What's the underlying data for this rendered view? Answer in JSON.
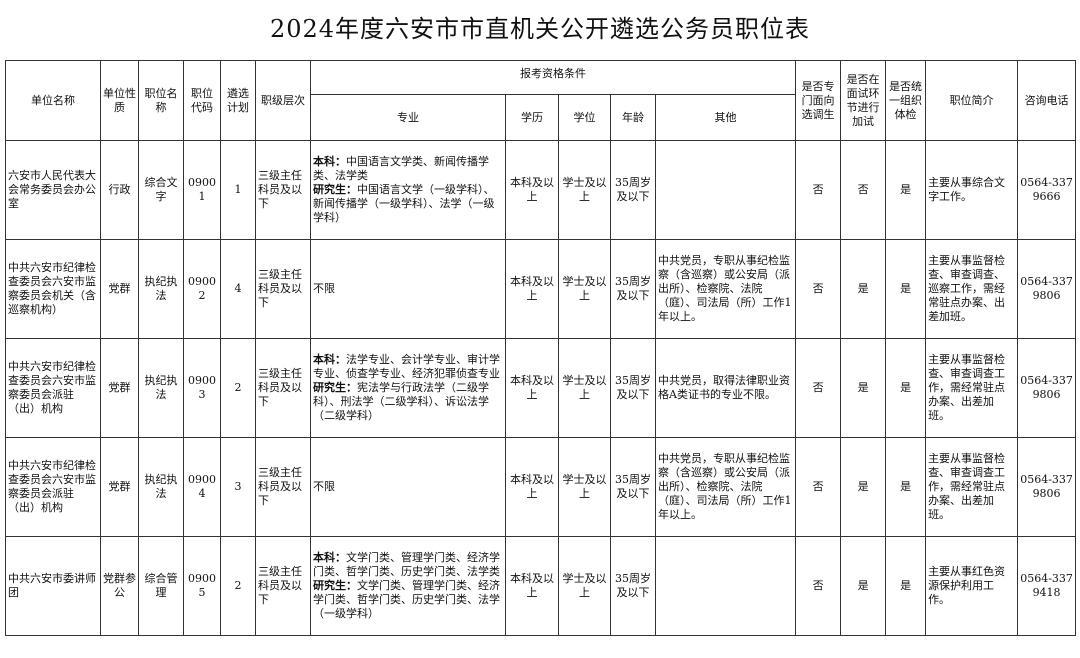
{
  "title": "2024年度六安市市直机关公开遴选公务员职位表",
  "headers": {
    "unit_name": "单位名称",
    "unit_type": "单位性质",
    "position_name": "职位名称",
    "position_code": "职位代码",
    "plan": "遴选计划",
    "level": "职级层次",
    "qualifications": "报考资格条件",
    "major": "专业",
    "education": "学历",
    "degree": "学位",
    "age": "年龄",
    "other": "其他",
    "targeted": "是否专门面向选调生",
    "extra_test": "是否在面试环节进行加试",
    "physical": "是否统一组织体检",
    "intro": "职位简介",
    "phone": "咨询电话"
  },
  "rows": [
    {
      "unit_name": "六安市人民代表大会常务委员会办公室",
      "unit_type": "行政",
      "position_name": "综合文字",
      "position_code": "09001",
      "plan": "1",
      "level": "三级主任科员及以下",
      "major_ug_label": "本科：",
      "major_ug": "中国语言文学类、新闻传播学类、法学类",
      "major_pg_label": "研究生：",
      "major_pg": "中国语言文学（一级学科）、新闻传播学（一级学科）、法学（一级学科）",
      "major_plain": "",
      "education": "本科及以上",
      "degree": "学士及以上",
      "age": "35周岁及以下",
      "other": "",
      "targeted": "否",
      "extra_test": "否",
      "physical": "是",
      "intro": "主要从事综合文字工作。",
      "phone": "0564-3379666"
    },
    {
      "unit_name": "中共六安市纪律检查委员会六安市监察委员会机关（含巡察机构）",
      "unit_type": "党群",
      "position_name": "执纪执法",
      "position_code": "09002",
      "plan": "4",
      "level": "三级主任科员及以下",
      "major_ug_label": "",
      "major_ug": "",
      "major_pg_label": "",
      "major_pg": "",
      "major_plain": "不限",
      "education": "本科及以上",
      "degree": "学士及以上",
      "age": "35周岁及以下",
      "other": "中共党员，专职从事纪检监察（含巡察）或公安局（派出所）、检察院、法院（庭）、司法局（所）工作1年以上。",
      "targeted": "否",
      "extra_test": "是",
      "physical": "是",
      "intro": "主要从事监督检查、审查调查、巡察工作，需经常驻点办案、出差加班。",
      "phone": "0564-3379806"
    },
    {
      "unit_name": "中共六安市纪律检查委员会六安市监察委员会派驻（出）机构",
      "unit_type": "党群",
      "position_name": "执纪执法",
      "position_code": "09003",
      "plan": "2",
      "level": "三级主任科员及以下",
      "major_ug_label": "本科：",
      "major_ug": "法学专业、会计学专业、审计学专业、侦查学专业、经济犯罪侦查专业",
      "major_pg_label": "研究生：",
      "major_pg": "宪法学与行政法学（二级学科）、刑法学（二级学科）、诉讼法学（二级学科）",
      "major_plain": "",
      "education": "本科及以上",
      "degree": "学士及以上",
      "age": "35周岁及以下",
      "other": "中共党员，取得法律职业资格A类证书的专业不限。",
      "targeted": "否",
      "extra_test": "是",
      "physical": "是",
      "intro": "主要从事监督检查、审查调查工作，需经常驻点办案、出差加班。",
      "phone": "0564-3379806"
    },
    {
      "unit_name": "中共六安市纪律检查委员会六安市监察委员会派驻（出）机构",
      "unit_type": "党群",
      "position_name": "执纪执法",
      "position_code": "09004",
      "plan": "3",
      "level": "三级主任科员及以下",
      "major_ug_label": "",
      "major_ug": "",
      "major_pg_label": "",
      "major_pg": "",
      "major_plain": "不限",
      "education": "本科及以上",
      "degree": "学士及以上",
      "age": "35周岁及以下",
      "other": "中共党员，专职从事纪检监察（含巡察）或公安局（派出所）、检察院、法院（庭）、司法局（所）工作1年以上。",
      "targeted": "否",
      "extra_test": "是",
      "physical": "是",
      "intro": "主要从事监督检查、审查调查工作，需经常驻点办案、出差加班。",
      "phone": "0564-3379806"
    },
    {
      "unit_name": "中共六安市委讲师团",
      "unit_type": "党群参公",
      "position_name": "综合管理",
      "position_code": "09005",
      "plan": "2",
      "level": "三级主任科员及以下",
      "major_ug_label": "本科：",
      "major_ug": "文学门类、管理学门类、经济学门类、哲学门类、历史学门类、法学类",
      "major_pg_label": "研究生：",
      "major_pg": "文学门类、管理学门类、经济学门类、哲学门类、历史学门类、法学（一级学科）",
      "major_plain": "",
      "education": "本科及以上",
      "degree": "学士及以上",
      "age": "35周岁及以下",
      "other": "",
      "targeted": "否",
      "extra_test": "是",
      "physical": "是",
      "intro": "主要从事红色资源保护利用工作。",
      "phone": "0564-3379418"
    }
  ]
}
